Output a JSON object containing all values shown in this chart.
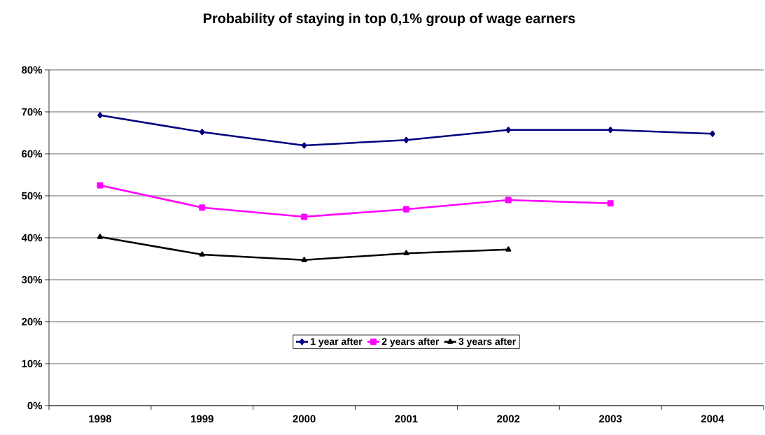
{
  "chart_data": {
    "type": "line",
    "title": "Probability of staying in top 0,1% group of wage earners",
    "categories": [
      "1998",
      "1999",
      "2000",
      "2001",
      "2002",
      "2003",
      "2004"
    ],
    "series": [
      {
        "name": "1 year after",
        "color": "#000080",
        "marker": "diamond",
        "values": [
          69.2,
          65.2,
          62.0,
          63.3,
          65.7,
          65.7,
          64.8
        ]
      },
      {
        "name": "2 years after",
        "color": "#ff00ff",
        "marker": "square",
        "values": [
          52.5,
          47.2,
          45.0,
          46.8,
          49.0,
          48.2,
          null
        ]
      },
      {
        "name": "3 years after",
        "color": "#000000",
        "marker": "triangle",
        "values": [
          40.2,
          36.0,
          34.7,
          36.3,
          37.2,
          null,
          null
        ]
      }
    ],
    "ylim": [
      0,
      80
    ],
    "yticks": [
      {
        "value": 0,
        "label": "0%"
      },
      {
        "value": 10,
        "label": "10%"
      },
      {
        "value": 20,
        "label": "20%"
      },
      {
        "value": 30,
        "label": "30%"
      },
      {
        "value": 40,
        "label": "40%"
      },
      {
        "value": 50,
        "label": "50%"
      },
      {
        "value": 60,
        "label": "60%"
      },
      {
        "value": 70,
        "label": "70%"
      },
      {
        "value": 80,
        "label": "80%"
      }
    ],
    "grid": "y",
    "legend": "bottom",
    "line_style": "solid"
  }
}
